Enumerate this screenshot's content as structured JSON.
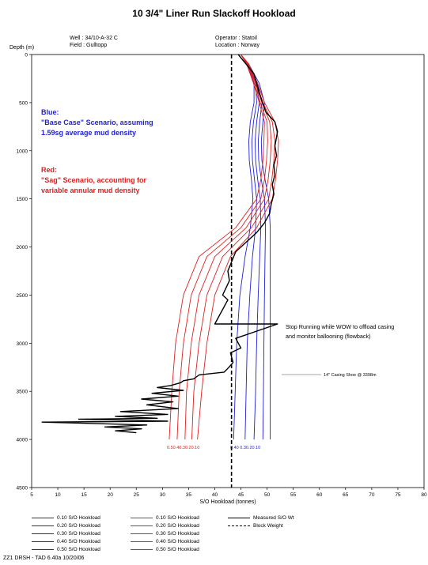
{
  "chart_data": {
    "type": "line",
    "title": "10 3/4\" Liner Run Slackoff Hookload",
    "well_label": "Well :",
    "well_value": "34/10-A-32 C",
    "field_label": "Field :",
    "field_value": "Gulltopp",
    "operator_label": "Operator :",
    "operator_value": "Statoil",
    "location_label": "Location :",
    "location_value": "Norway",
    "ylabel": "Depth (m)",
    "xlabel": "S/O Hookload (tonnes)",
    "x_ticks": [
      5,
      10,
      15,
      20,
      25,
      30,
      35,
      40,
      45,
      50,
      55,
      60,
      65,
      70,
      75,
      80
    ],
    "y_ticks": [
      0,
      500,
      1000,
      1500,
      2000,
      2500,
      3000,
      3500,
      4000,
      4500
    ],
    "xlim": [
      5,
      80
    ],
    "ylim": [
      4500,
      0
    ],
    "y_inverted": true,
    "grid": false,
    "colors": {
      "blue": "#1f1fd6",
      "red": "#e02020",
      "black": "#000000"
    },
    "series": [
      {
        "name": "0.10 S/O Hookload",
        "group": "blue",
        "x": [
          45,
          46.5,
          48.5,
          49.5,
          49.2,
          48.9,
          49.0,
          49.6,
          50.3,
          50.6,
          50.6,
          50.6,
          50.6,
          50.6,
          50.6
        ],
        "y": [
          0,
          100,
          300,
          500,
          700,
          900,
          1100,
          1300,
          1500,
          1800,
          2100,
          2500,
          3000,
          3500,
          4000
        ]
      },
      {
        "name": "0.20 S/O Hookload",
        "group": "blue",
        "x": [
          45,
          46.4,
          48.2,
          49.0,
          48.6,
          48.3,
          48.4,
          48.9,
          49.5,
          49.7,
          49.6,
          49.5,
          49.4,
          49.3,
          49.2
        ],
        "y": [
          0,
          100,
          300,
          500,
          700,
          900,
          1100,
          1300,
          1500,
          1800,
          2100,
          2500,
          3000,
          3500,
          4000
        ]
      },
      {
        "name": "0.30 S/O Hookload",
        "group": "blue",
        "x": [
          45,
          46.3,
          48.0,
          48.5,
          48.0,
          47.7,
          47.8,
          48.2,
          48.7,
          48.8,
          48.6,
          48.3,
          48.0,
          47.8,
          47.5
        ],
        "y": [
          0,
          100,
          300,
          500,
          700,
          900,
          1100,
          1300,
          1500,
          1800,
          2100,
          2500,
          3000,
          3500,
          4000
        ]
      },
      {
        "name": "0.40 S/O Hookload",
        "group": "blue",
        "x": [
          45,
          46.2,
          47.8,
          48.0,
          47.4,
          47.1,
          47.2,
          47.6,
          48.0,
          47.8,
          47.2,
          46.7,
          46.2,
          46.0,
          45.8
        ],
        "y": [
          0,
          100,
          300,
          500,
          700,
          900,
          1100,
          1300,
          1500,
          1800,
          2100,
          2500,
          3000,
          3500,
          4000
        ]
      },
      {
        "name": "0.50 S/O Hookload",
        "group": "blue",
        "x": [
          45,
          46.1,
          47.5,
          47.5,
          46.8,
          46.5,
          46.6,
          47.0,
          47.3,
          46.8,
          45.8,
          44.8,
          44.2,
          43.9,
          43.6
        ],
        "y": [
          0,
          100,
          300,
          500,
          700,
          900,
          1100,
          1300,
          1500,
          1800,
          2100,
          2500,
          3000,
          3500,
          4000
        ]
      },
      {
        "name": "0.10 S/O Hookload",
        "group": "red",
        "x": [
          45,
          46.5,
          48.2,
          49.5,
          51.5,
          52.2,
          52.0,
          51.6,
          51.0,
          48.0,
          43.0,
          40.0,
          38.5,
          37.5,
          36.7
        ],
        "y": [
          0,
          100,
          300,
          500,
          700,
          900,
          1100,
          1300,
          1500,
          1800,
          2100,
          2500,
          3000,
          3500,
          4000
        ]
      },
      {
        "name": "0.20 S/O Hookload",
        "group": "red",
        "x": [
          45,
          46.4,
          48.0,
          49.2,
          51.0,
          51.5,
          51.3,
          50.9,
          50.3,
          47.0,
          41.5,
          38.5,
          37.0,
          36.0,
          35.6
        ],
        "y": [
          0,
          100,
          300,
          500,
          700,
          900,
          1100,
          1300,
          1500,
          1800,
          2100,
          2500,
          3000,
          3500,
          4000
        ]
      },
      {
        "name": "0.30 S/O Hookload",
        "group": "red",
        "x": [
          45,
          46.3,
          47.8,
          49.0,
          50.5,
          50.8,
          50.6,
          50.2,
          49.5,
          46.0,
          40.0,
          37.0,
          35.5,
          34.6,
          34.3
        ],
        "y": [
          0,
          100,
          300,
          500,
          700,
          900,
          1100,
          1300,
          1500,
          1800,
          2100,
          2500,
          3000,
          3500,
          4000
        ]
      },
      {
        "name": "0.40 S/O Hookload",
        "group": "red",
        "x": [
          45,
          46.2,
          47.6,
          48.7,
          50.0,
          50.1,
          49.9,
          49.5,
          48.8,
          45.0,
          38.5,
          35.5,
          34.0,
          33.2,
          32.8
        ],
        "y": [
          0,
          100,
          300,
          500,
          700,
          900,
          1100,
          1300,
          1500,
          1800,
          2100,
          2500,
          3000,
          3500,
          4000
        ]
      },
      {
        "name": "0.50 S/O Hookload",
        "group": "red",
        "x": [
          45,
          46.1,
          47.4,
          48.5,
          49.5,
          49.4,
          49.2,
          48.8,
          48.0,
          44.0,
          37.0,
          34.0,
          32.5,
          31.8,
          31.3
        ],
        "y": [
          0,
          100,
          300,
          500,
          700,
          900,
          1100,
          1300,
          1500,
          1800,
          2100,
          2500,
          3000,
          3500,
          4000
        ]
      },
      {
        "name": "Measured S/O Wt",
        "group": "black",
        "x": [
          44.5,
          46,
          47.5,
          48.5,
          49.8,
          51.5,
          52,
          51.5,
          51.8,
          51.3,
          51.5,
          51,
          51.3,
          50.8,
          50.5,
          49.5,
          48,
          46,
          44,
          42.5,
          42.8,
          41.5,
          42.5,
          40,
          52,
          44,
          45,
          43,
          43.5,
          42.7,
          41.8,
          37,
          36,
          34,
          33.5,
          31.5,
          29,
          34,
          28,
          33,
          26,
          32,
          27,
          33,
          22,
          31,
          21,
          29,
          14,
          31,
          7,
          27,
          19,
          26,
          21,
          25
        ],
        "y": [
          0,
          100,
          200,
          400,
          600,
          700,
          800,
          950,
          1050,
          1150,
          1250,
          1350,
          1450,
          1550,
          1650,
          1750,
          1850,
          1950,
          2050,
          2250,
          2350,
          2500,
          2550,
          2800,
          2800,
          2950,
          3050,
          3100,
          3200,
          3250,
          3300,
          3330,
          3370,
          3390,
          3410,
          3440,
          3460,
          3490,
          3520,
          3550,
          3580,
          3610,
          3640,
          3680,
          3710,
          3740,
          3760,
          3780,
          3790,
          3810,
          3820,
          3850,
          3870,
          3890,
          3910,
          3930
        ]
      },
      {
        "name": "Block Weight",
        "group": "black-dashed",
        "x": [
          43.2,
          43.2
        ],
        "y": [
          0,
          4500
        ]
      }
    ],
    "annotations": {
      "blue_heading": "Blue:",
      "blue_text_1": "\"Base Case\" Scenario, assuming",
      "blue_text_2": "1.59sg average mud density",
      "red_heading": "Red:",
      "red_text_1": "\"Sag\" Scenario, accounting for",
      "red_text_2": "variable annular mud density",
      "stop_text_1": "Stop Running while WOW to offload casing",
      "stop_text_2": "and monitor ballooning (flowback)",
      "shoe_text": "14\" Casing Shoe @ 3398m",
      "shoe_depth": 3398,
      "red_end_labels": "0.50.40.30.20.10",
      "blue_end_labels": "0.40  0.30.20.10"
    }
  },
  "legend": {
    "blue": [
      "0.10 S/O Hookload",
      "0.20 S/O Hookload",
      "0.30 S/O Hookload",
      "0.40 S/O Hookload",
      "0.50 S/O Hookload"
    ],
    "red": [
      "0.10 S/O Hookload",
      "0.20 S/O Hookload",
      "0.30 S/O Hookload",
      "0.40 S/O Hookload",
      "0.50 S/O Hookload"
    ],
    "black": [
      "Measured S/O Wt",
      "Block Weight"
    ]
  },
  "footer": "ZZ1   DRSH - TAD 6.40a 10/20/06"
}
